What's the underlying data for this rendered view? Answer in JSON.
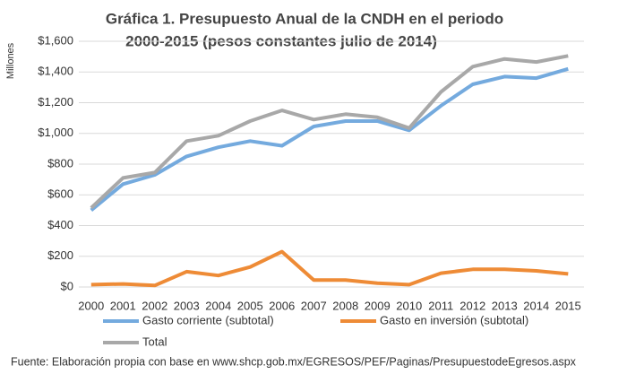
{
  "chart_data": {
    "type": "line",
    "title": [
      "Gráfica 1. Presupuesto Anual de la CNDH en el periodo",
      "2000-2015 (pesos constantes julio de 2014)"
    ],
    "y_label": "Millones",
    "categories": [
      "2000",
      "2001",
      "2002",
      "2003",
      "2004",
      "2005",
      "2006",
      "2007",
      "2008",
      "2009",
      "2010",
      "2011",
      "2012",
      "2013",
      "2014",
      "2015"
    ],
    "series": [
      {
        "name": "Gasto corriente (subtotal)",
        "color": "#74aade",
        "values": [
          500,
          670,
          730,
          850,
          910,
          950,
          920,
          1045,
          1080,
          1080,
          1020,
          1180,
          1320,
          1370,
          1360,
          1420
        ]
      },
      {
        "name": "Gasto en inversión (subtotal)",
        "color": "#ee8b36",
        "values": [
          15,
          20,
          10,
          100,
          75,
          130,
          230,
          45,
          45,
          25,
          15,
          90,
          115,
          115,
          105,
          85
        ]
      },
      {
        "name": "Total",
        "color": "#a8a8a8",
        "values": [
          515,
          710,
          745,
          950,
          985,
          1080,
          1150,
          1090,
          1125,
          1105,
          1035,
          1270,
          1435,
          1485,
          1465,
          1505
        ]
      }
    ],
    "ylim": [
      0,
      1600
    ],
    "yticks": [
      {
        "value": 0,
        "label": "$0"
      },
      {
        "value": 200,
        "label": "$200"
      },
      {
        "value": 400,
        "label": "$400"
      },
      {
        "value": 600,
        "label": "$600"
      },
      {
        "value": 800,
        "label": "$800"
      },
      {
        "value": 1000,
        "label": "$1,000"
      },
      {
        "value": 1200,
        "label": "$1,200"
      },
      {
        "value": 1400,
        "label": "$1,400"
      },
      {
        "value": 1600,
        "label": "$1,600"
      }
    ],
    "grid": true,
    "legend": "bottom",
    "source": "Fuente: Elaboración propia con base en www.shcp.gob.mx/EGRESOS/PEF/Paginas/PresupuestodeEgresos.aspx"
  }
}
